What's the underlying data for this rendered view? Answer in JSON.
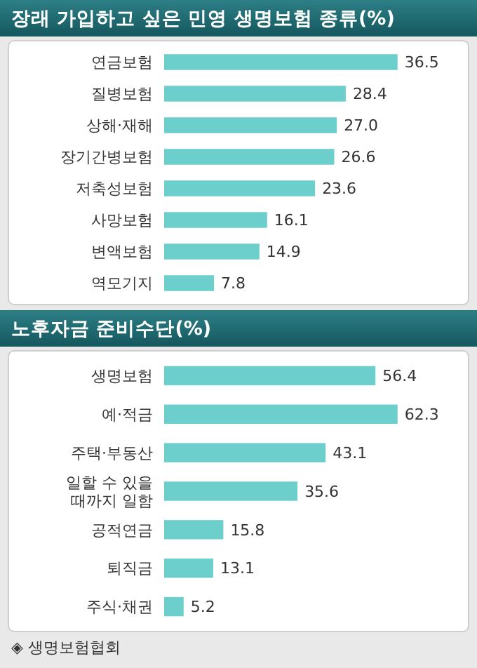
{
  "chart_data": [
    {
      "type": "bar",
      "orientation": "horizontal",
      "title": "장래 가입하고 싶은 민영 생명보험 종류(%)",
      "categories": [
        "연금보험",
        "질병보험",
        "상해·재해",
        "장기간병보험",
        "저축성보험",
        "사망보험",
        "변액보험",
        "역모기지"
      ],
      "values": [
        36.5,
        28.4,
        27.0,
        26.6,
        23.6,
        16.1,
        14.9,
        7.8
      ],
      "value_labels": [
        "36.5",
        "28.4",
        "27.0",
        "26.6",
        "23.6",
        "16.1",
        "14.9",
        "7.8"
      ],
      "color": "#6dcfcc"
    },
    {
      "type": "bar",
      "orientation": "horizontal",
      "title": "노후자금 준비수단(%)",
      "categories": [
        "생명보험",
        "예·적금",
        "주택·부동산",
        "일할 수 있을 때까지 일함",
        "공적연금",
        "퇴직금",
        "주식·채권"
      ],
      "values": [
        56.4,
        62.3,
        43.1,
        35.6,
        15.8,
        13.1,
        5.2
      ],
      "value_labels": [
        "56.4",
        "62.3",
        "43.1",
        "35.6",
        "15.8",
        "13.1",
        "5.2"
      ],
      "color": "#6dcfcc",
      "annotations": [
        "◈ 생명보험협회"
      ]
    }
  ]
}
